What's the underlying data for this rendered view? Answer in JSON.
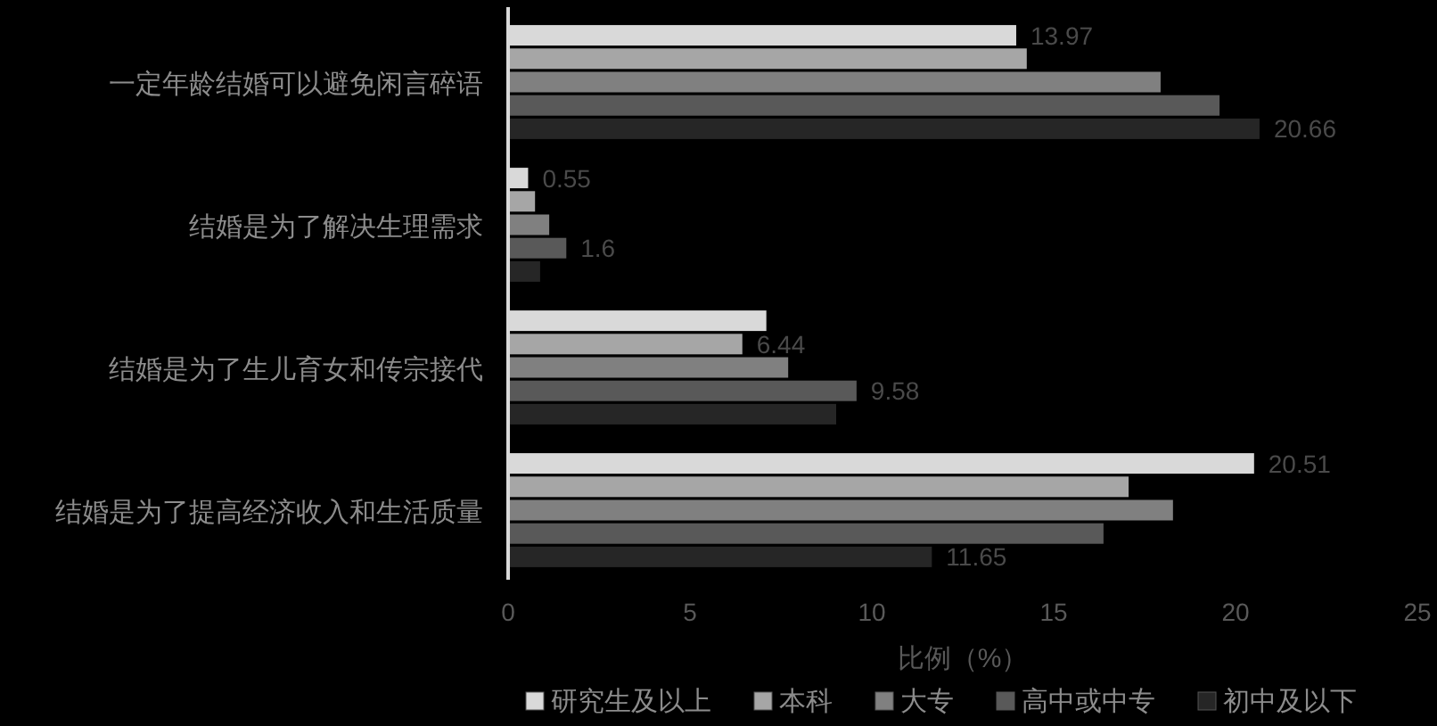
{
  "chart_data": {
    "type": "bar",
    "orientation": "horizontal",
    "xlabel": "比例（%）",
    "categories": [
      "一定年龄结婚可以避免闲言碎语",
      "结婚是为了解决生理需求",
      "结婚是为了生儿育女和传宗接代",
      "结婚是为了提高经济收入和生活质量"
    ],
    "series": [
      {
        "name": "研究生及以上",
        "color": "#d9d9d9",
        "values": [
          13.97,
          0.55,
          7.1,
          20.51
        ],
        "value_labels": [
          "13.97",
          "0.55",
          null,
          "20.51"
        ]
      },
      {
        "name": "本科",
        "color": "#a6a6a6",
        "values": [
          14.26,
          0.74,
          6.44,
          17.06
        ],
        "value_labels": [
          null,
          null,
          "6.44",
          null
        ]
      },
      {
        "name": "大专",
        "color": "#808080",
        "values": [
          17.94,
          1.13,
          7.7,
          18.28
        ],
        "value_labels": [
          null,
          null,
          null,
          null
        ]
      },
      {
        "name": "高中或中专",
        "color": "#595959",
        "values": [
          19.56,
          1.6,
          9.58,
          16.37
        ],
        "value_labels": [
          null,
          "1.6",
          "9.58",
          null
        ]
      },
      {
        "name": "初中及以下",
        "color": "#262626",
        "values": [
          20.66,
          0.88,
          9.02,
          11.65
        ],
        "value_labels": [
          "20.66",
          null,
          null,
          "11.65"
        ]
      }
    ],
    "xlim": [
      0,
      25
    ],
    "xticks": [
      0,
      5,
      10,
      15,
      20,
      25
    ],
    "grid": false,
    "legend": "bottom"
  }
}
